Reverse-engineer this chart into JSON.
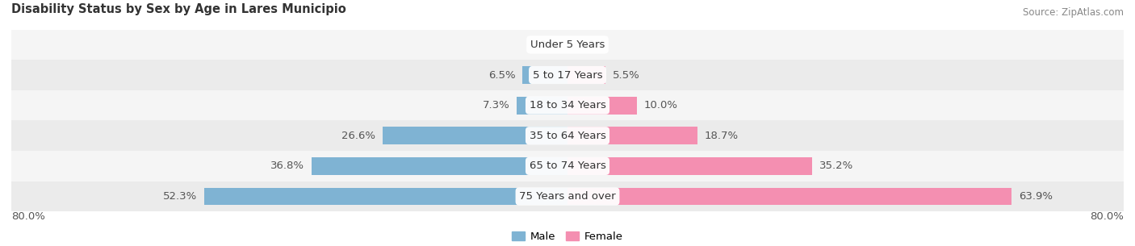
{
  "title": "Disability Status by Sex by Age in Lares Municipio",
  "source": "Source: ZipAtlas.com",
  "categories": [
    "Under 5 Years",
    "5 to 17 Years",
    "18 to 34 Years",
    "35 to 64 Years",
    "65 to 74 Years",
    "75 Years and over"
  ],
  "male_values": [
    0.0,
    6.5,
    7.3,
    26.6,
    36.8,
    52.3
  ],
  "female_values": [
    0.0,
    5.5,
    10.0,
    18.7,
    35.2,
    63.9
  ],
  "male_color": "#7fb3d3",
  "female_color": "#f48fb1",
  "row_bg_colors": [
    "#f5f5f5",
    "#ebebeb"
  ],
  "xlim_left": -80.0,
  "xlim_right": 80.0,
  "bar_height": 0.58,
  "label_fontsize": 9.5,
  "title_fontsize": 10.5,
  "source_fontsize": 8.5,
  "value_color": "#555555",
  "cat_label_color": "#333333"
}
